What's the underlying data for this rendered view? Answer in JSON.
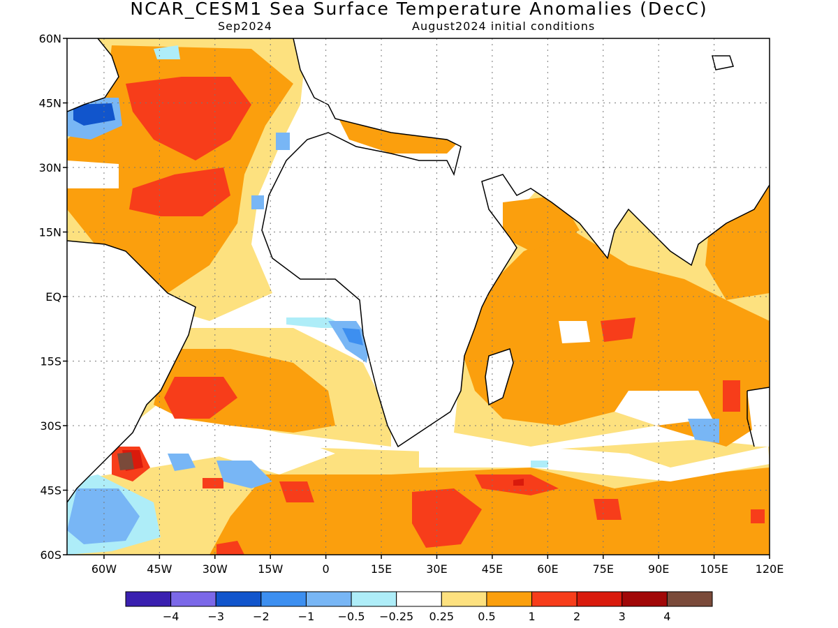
{
  "header": {
    "title": "NCAR_CESM1 Sea Surface Temperature Anomalies (DecC)",
    "valid_month": "Sep2024",
    "init_label": "August2024 initial conditions"
  },
  "map": {
    "lat_labels": [
      "60N",
      "45N",
      "30N",
      "15N",
      "EQ",
      "15S",
      "30S",
      "45S",
      "60S"
    ],
    "lon_labels": [
      "60W",
      "45W",
      "30W",
      "15W",
      "0",
      "15E",
      "30E",
      "45E",
      "60E",
      "75E",
      "90E",
      "105E",
      "120E"
    ]
  },
  "colorbar": {
    "colors": [
      "#3a20b0",
      "#7b68e8",
      "#1155cc",
      "#3d8ff0",
      "#78b6f5",
      "#aeedf8",
      "#ffffff",
      "#fde17f",
      "#fb9f0d",
      "#f73d1a",
      "#d91a0c",
      "#a10808",
      "#7a4a3a"
    ],
    "labels": [
      "−4",
      "−3",
      "−2",
      "−1",
      "−0.5",
      "−0.25",
      "0.25",
      "0.5",
      "1",
      "2",
      "3",
      "4"
    ]
  },
  "palette": {
    "pale_yellow": "#fde17f",
    "orange": "#fb9f0d",
    "red": "#f73d1a",
    "dark_red": "#d91a0c",
    "brown": "#7a4a3a",
    "light_cyan": "#aeedf8",
    "light_blue": "#78b6f5",
    "blue": "#3d8ff0",
    "dark_blue": "#1155cc"
  }
}
